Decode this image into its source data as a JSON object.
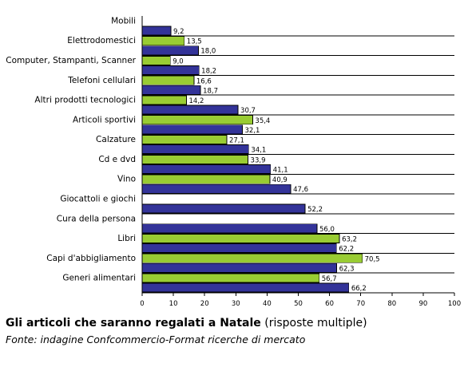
{
  "chart_data": {
    "type": "bar",
    "orientation": "horizontal",
    "categories": [
      "Mobili",
      "Elettrodomestici",
      "Computer, Stampanti, Scanner",
      "Telefoni cellulari",
      "Altri prodotti tecnologici",
      "Articoli sportivi",
      "Calzature",
      "Cd e dvd",
      "Vino",
      "Giocattoli e giochi",
      "Cura della persona",
      "Libri",
      "Capi d'abbigliamento",
      "Generi alimentari"
    ],
    "series": [
      {
        "values": [
          null,
          13.5,
          9.0,
          16.6,
          14.2,
          35.4,
          27.1,
          33.9,
          40.9,
          null,
          null,
          63.2,
          70.5,
          56.7
        ],
        "labels": [
          "",
          "13,5",
          "9,0",
          "16,6",
          "14,2",
          "35,4",
          "27,1",
          "33,9",
          "40,9",
          "",
          "",
          "63,2",
          "70,5",
          "56,7"
        ],
        "color": "#99cc33"
      },
      {
        "values": [
          9.2,
          18.0,
          18.2,
          18.7,
          30.7,
          32.1,
          34.1,
          41.1,
          47.6,
          52.2,
          56.0,
          62.2,
          62.3,
          66.2
        ],
        "labels": [
          "9,2",
          "18,0",
          "18,2",
          "18,7",
          "30,7",
          "32,1",
          "34,1",
          "41,1",
          "47,6",
          "52,2",
          "56,0",
          "62,2",
          "62,3",
          "66,2"
        ],
        "color": "#333399"
      }
    ],
    "xlim": [
      0,
      100
    ],
    "xticks": [
      "0",
      "10",
      "20",
      "30",
      "40",
      "50",
      "60",
      "70",
      "80",
      "90",
      "100"
    ],
    "grid": "horizontal lines between categories",
    "title_bold": "Gli articoli che saranno regalati a Natale",
    "title_rest": "(risposte multiple)",
    "source": "Fonte: indagine Confcommercio-Format ricerche di mercato"
  }
}
